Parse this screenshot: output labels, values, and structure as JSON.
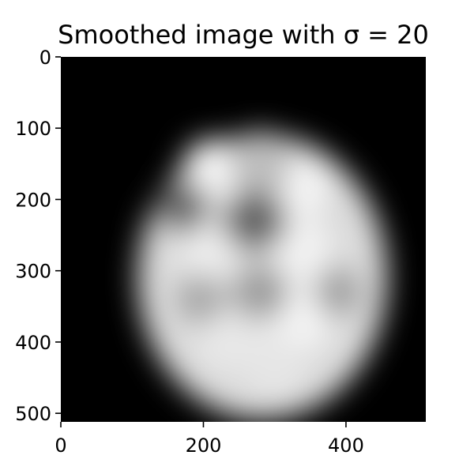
{
  "chart_data": {
    "type": "heatmap",
    "title": "Smoothed image with σ = 20",
    "xlabel": "",
    "ylabel": "",
    "colormap": "gray",
    "image_shape": [
      512,
      512
    ],
    "xlim": [
      0,
      512
    ],
    "ylim": [
      512,
      0
    ],
    "xticks": [
      0,
      200,
      400
    ],
    "xtick_labels": [
      "0",
      "200",
      "400"
    ],
    "yticks": [
      0,
      100,
      200,
      300,
      400,
      500
    ],
    "ytick_labels": [
      "0",
      "100",
      "200",
      "300",
      "400",
      "500"
    ],
    "grid": false,
    "legend": "none",
    "background_value": 0,
    "head": {
      "cx": 283,
      "cy": 309,
      "rx": 175,
      "ry": 200,
      "brightness": 0.86
    },
    "dark_regions": [
      {
        "x": 170,
        "y": 210,
        "r": 38,
        "brightness": 0.42
      },
      {
        "x": 272,
        "y": 228,
        "r": 45,
        "brightness": 0.4
      },
      {
        "x": 280,
        "y": 330,
        "r": 40,
        "brightness": 0.62
      },
      {
        "x": 195,
        "y": 340,
        "r": 35,
        "brightness": 0.66
      },
      {
        "x": 390,
        "y": 330,
        "r": 35,
        "brightness": 0.64
      },
      {
        "x": 280,
        "y": 148,
        "r": 45,
        "brightness": 0.74
      }
    ],
    "bright_regions": [
      {
        "x": 215,
        "y": 160,
        "r": 45,
        "brightness": 0.97
      },
      {
        "x": 330,
        "y": 180,
        "r": 45,
        "brightness": 0.96
      },
      {
        "x": 335,
        "y": 270,
        "r": 45,
        "brightness": 0.95
      },
      {
        "x": 210,
        "y": 270,
        "r": 45,
        "brightness": 0.93
      },
      {
        "x": 330,
        "y": 365,
        "r": 50,
        "brightness": 0.96
      },
      {
        "x": 235,
        "y": 395,
        "r": 45,
        "brightness": 0.91
      },
      {
        "x": 300,
        "y": 430,
        "r": 45,
        "brightness": 0.9
      }
    ]
  }
}
